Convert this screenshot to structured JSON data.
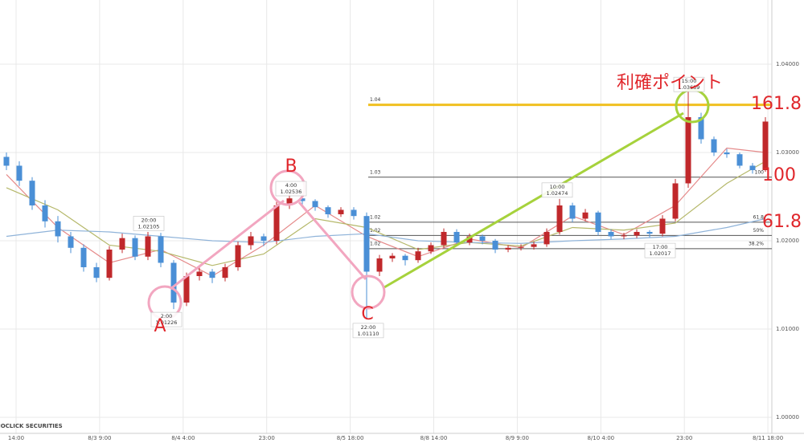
{
  "chart_data": {
    "type": "candlestick",
    "ylim": [
      0.99709,
      1.04727
    ],
    "yticks": [
      {
        "value": 1.0,
        "label": "1.00000"
      },
      {
        "value": 1.01,
        "label": "1.01000"
      },
      {
        "value": 1.02,
        "label": "1.02000"
      },
      {
        "value": 1.03,
        "label": "1.03000"
      },
      {
        "value": 1.04,
        "label": "1.04000"
      }
    ],
    "time_labels": [
      "14:00",
      "8/3 9:00",
      "8/4 4:00",
      "23:00",
      "8/5 18:00",
      "8/8 14:00",
      "8/9 9:00",
      "8/10 4:00",
      "23:00",
      "8/11 18:00"
    ],
    "up_color": "#c0282b",
    "down_color": "#4a8fd6",
    "grid": true,
    "open": [
      1.0295,
      1.0285,
      1.0268,
      1.024,
      1.0222,
      1.0205,
      1.0192,
      1.017,
      1.0158,
      1.019,
      1.0203,
      1.0182,
      1.0205,
      1.0175,
      1.013,
      1.016,
      1.0165,
      1.0158,
      1.017,
      1.0195,
      1.0205,
      1.02,
      1.024,
      1.0248,
      1.0245,
      1.0238,
      1.023,
      1.0235,
      1.0228,
      1.0165,
      1.018,
      1.0183,
      1.0178,
      1.0188,
      1.0195,
      1.021,
      1.0198,
      1.0205,
      1.02,
      1.019,
      1.0192,
      1.0193,
      1.0196,
      1.021,
      1.024,
      1.0225,
      1.0232,
      1.021,
      1.0205,
      1.0206,
      1.021,
      1.0208,
      1.0225,
      1.0265,
      1.034,
      1.0315,
      1.03,
      1.0298,
      1.0285,
      1.028
    ],
    "high": [
      1.03,
      1.029,
      1.0272,
      1.0246,
      1.0228,
      1.021,
      1.0196,
      1.0175,
      1.0194,
      1.0208,
      1.0206,
      1.021,
      1.0209,
      1.0178,
      1.0164,
      1.017,
      1.0168,
      1.0174,
      1.0199,
      1.021,
      1.0208,
      1.0244,
      1.02536,
      1.025,
      1.0247,
      1.024,
      1.0238,
      1.0238,
      1.0232,
      1.0184,
      1.0186,
      1.0185,
      1.0192,
      1.0198,
      1.0214,
      1.0213,
      1.0208,
      1.0207,
      1.0202,
      1.0195,
      1.0196,
      1.0199,
      1.0214,
      1.02474,
      1.0243,
      1.0236,
      1.0234,
      1.0213,
      1.0209,
      1.0213,
      1.0212,
      1.0229,
      1.027,
      1.03689,
      1.0345,
      1.0318,
      1.0304,
      1.03,
      1.0288,
      1.034
    ],
    "low": [
      1.028,
      1.0262,
      1.0235,
      1.0215,
      1.0198,
      1.0186,
      1.0165,
      1.0153,
      1.0155,
      1.0186,
      1.0178,
      1.0178,
      1.017,
      1.01226,
      1.0126,
      1.0155,
      1.0152,
      1.0154,
      1.0166,
      1.019,
      1.0194,
      1.0196,
      1.0236,
      1.024,
      1.0234,
      1.0226,
      1.0227,
      1.0224,
      1.0111,
      1.016,
      1.0176,
      1.0172,
      1.0175,
      1.0185,
      1.0192,
      1.0195,
      1.0195,
      1.0196,
      1.0186,
      1.0187,
      1.0189,
      1.019,
      1.0193,
      1.0207,
      1.0221,
      1.0222,
      1.0206,
      1.0202,
      1.02017,
      1.0203,
      1.0204,
      1.0205,
      1.0222,
      1.026,
      1.031,
      1.0296,
      1.0294,
      1.0282,
      1.0276,
      1.0278
    ],
    "close": [
      1.0285,
      1.0268,
      1.024,
      1.0222,
      1.0205,
      1.0192,
      1.017,
      1.0158,
      1.019,
      1.0203,
      1.0182,
      1.0205,
      1.0175,
      1.013,
      1.016,
      1.0165,
      1.0158,
      1.017,
      1.0195,
      1.0205,
      1.02,
      1.024,
      1.0248,
      1.0245,
      1.0238,
      1.023,
      1.0235,
      1.0228,
      1.0165,
      1.018,
      1.0183,
      1.0178,
      1.0188,
      1.0195,
      1.021,
      1.0198,
      1.0205,
      1.02,
      1.019,
      1.0192,
      1.0193,
      1.0196,
      1.021,
      1.024,
      1.0225,
      1.0232,
      1.021,
      1.0205,
      1.0206,
      1.021,
      1.0208,
      1.0225,
      1.0265,
      1.034,
      1.0315,
      1.03,
      1.0298,
      1.0285,
      1.028,
      1.0335
    ],
    "moving_averages": [
      {
        "color": "#e58a8a",
        "x": [
          0,
          4,
          8,
          12,
          16,
          20,
          24,
          28,
          32,
          36,
          40,
          44,
          48,
          52,
          56,
          59
        ],
        "values": [
          1.0275,
          1.0215,
          1.0175,
          1.019,
          1.016,
          1.0195,
          1.024,
          1.0205,
          1.0182,
          1.0202,
          1.0192,
          1.0228,
          1.0207,
          1.024,
          1.0305,
          1.03
        ]
      },
      {
        "color": "#b5b86a",
        "x": [
          0,
          4,
          8,
          12,
          16,
          20,
          24,
          28,
          32,
          36,
          40,
          44,
          48,
          52,
          56,
          59
        ],
        "values": [
          1.026,
          1.0235,
          1.0195,
          1.0188,
          1.0172,
          1.0185,
          1.0225,
          1.0215,
          1.019,
          1.0198,
          1.0194,
          1.0215,
          1.0212,
          1.022,
          1.0265,
          1.029
        ]
      },
      {
        "color": "#8fb3d9",
        "x": [
          0,
          4,
          8,
          12,
          16,
          20,
          24,
          28,
          32,
          36,
          40,
          44,
          48,
          52,
          56,
          59
        ],
        "values": [
          1.0205,
          1.0212,
          1.021,
          1.0205,
          1.02,
          1.0198,
          1.0205,
          1.0208,
          1.02,
          1.0198,
          1.0197,
          1.02,
          1.0202,
          1.0205,
          1.0215,
          1.0225
        ]
      }
    ],
    "fib_levels": [
      {
        "value": 1.0354,
        "label": "1.04",
        "color": "#f0c020"
      },
      {
        "value": 1.0272,
        "label": "1.03",
        "tag": "100",
        "color": "#555"
      },
      {
        "value": 1.0221,
        "label": "1.02",
        "tag": "61.8",
        "color": "#555"
      },
      {
        "value": 1.0206,
        "label": "1.02",
        "tag": "50%",
        "color": "#555"
      },
      {
        "value": 1.0191,
        "label": "1.02",
        "tag": "38.2%",
        "color": "#555"
      }
    ],
    "callouts": [
      {
        "time": "20:00",
        "price": {
          "value": 1.02105,
          "label": "1.02105"
        }
      },
      {
        "time": "4:00",
        "price": {
          "value": 1.02536,
          "label": "1.02536"
        }
      },
      {
        "time": "22:00",
        "price": {
          "value": 1.0111,
          "label": "1.01110"
        }
      },
      {
        "time": "2:00",
        "price": {
          "value": 1.01226,
          "label": "1.01226"
        }
      },
      {
        "time": "10:00",
        "price": {
          "value": 1.02474,
          "label": "1.02474"
        }
      },
      {
        "time": "17:00",
        "price": {
          "value": 1.02017,
          "label": "1.02017"
        }
      },
      {
        "time": "15:00",
        "price": {
          "value": 1.03689,
          "label": "1.03689"
        }
      }
    ],
    "annotations": {
      "a": "A",
      "b": "B",
      "c": "C",
      "profit": "利確ポイント",
      "r1618": "161.8",
      "r100": "100",
      "r618": "61.8"
    },
    "watermark": "GMOCLICK SECURITIES"
  }
}
